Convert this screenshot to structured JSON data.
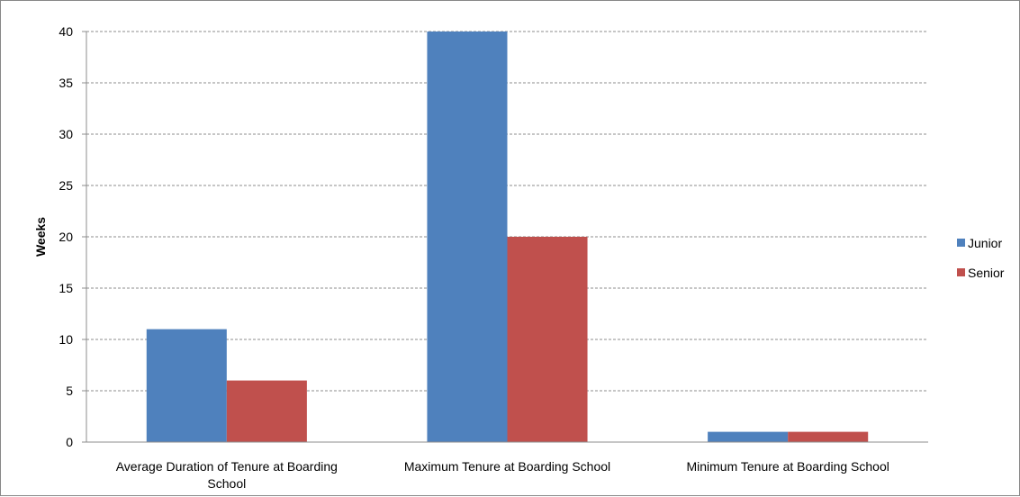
{
  "chart_data": {
    "type": "bar",
    "title": "",
    "xlabel": "",
    "ylabel": "Weeks",
    "ylim": [
      0,
      40
    ],
    "yticks": [
      0,
      5,
      10,
      15,
      20,
      25,
      30,
      35,
      40
    ],
    "grid": "horizontal dashed",
    "legend_position": "right",
    "categories": [
      [
        "Average Duration of Tenure at Boarding",
        "School"
      ],
      [
        "Maximum Tenure at Boarding School"
      ],
      [
        "Minimum Tenure at Boarding School"
      ]
    ],
    "series": [
      {
        "name": "Junior",
        "color": "#4F81BD",
        "values": [
          11,
          40,
          1
        ]
      },
      {
        "name": "Senior",
        "color": "#C0504D",
        "values": [
          6,
          20,
          1
        ]
      }
    ]
  }
}
